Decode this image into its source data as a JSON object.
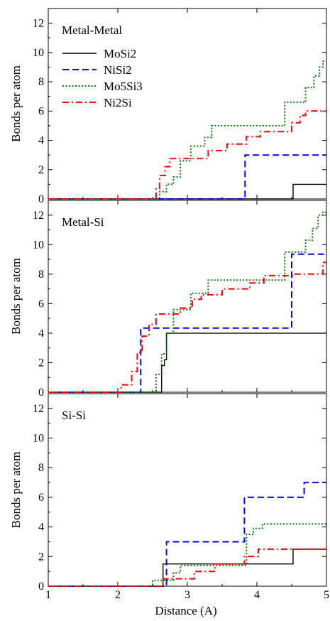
{
  "chart_data": [
    {
      "type": "line",
      "step": true,
      "panel_label": "Metal-Metal",
      "xlim": [
        1,
        5
      ],
      "ylim": [
        0,
        13
      ],
      "x_ticks": [
        1,
        2,
        3,
        4,
        5
      ],
      "y_ticks": [
        0,
        2,
        4,
        6,
        8,
        10,
        12
      ],
      "y_tick_labels": [
        "0",
        "2",
        "4",
        "6",
        "8",
        "10",
        "12"
      ],
      "ylabel": "Bonds per atom",
      "legend_position": "upper-left",
      "series": [
        {
          "name": "MoSi2",
          "color": "#000000",
          "style": "solid",
          "x": [
            1.0,
            4.52,
            4.52,
            5.0
          ],
          "y": [
            0,
            0,
            1,
            1
          ]
        },
        {
          "name": "NiSi2",
          "color": "#0000ff",
          "style": "dashed",
          "x": [
            1.0,
            3.83,
            3.83,
            5.0
          ],
          "y": [
            0,
            0,
            3,
            3
          ]
        },
        {
          "name": "Mo5Si3",
          "color": "#008000",
          "style": "dotted",
          "x": [
            1.0,
            2.6,
            2.6,
            2.7,
            2.7,
            2.8,
            2.8,
            2.9,
            2.9,
            3.05,
            3.05,
            3.25,
            3.25,
            3.35,
            3.35,
            4.4,
            4.4,
            4.7,
            4.7,
            4.82,
            4.82,
            4.9,
            4.9,
            4.95,
            4.95,
            5.0
          ],
          "y": [
            0,
            0,
            0.5,
            0.5,
            1.0,
            1.0,
            1.5,
            1.5,
            2.6,
            2.6,
            3.6,
            3.6,
            4.2,
            4.2,
            5.0,
            5.0,
            6.6,
            6.6,
            7.6,
            7.6,
            8.4,
            8.4,
            9.0,
            9.0,
            9.4,
            9.4
          ]
        },
        {
          "name": "Ni2Si",
          "color": "#ff0000",
          "style": "dashdot",
          "x": [
            1.0,
            2.55,
            2.55,
            2.6,
            2.6,
            2.68,
            2.68,
            2.75,
            2.75,
            3.3,
            3.3,
            3.57,
            3.57,
            3.85,
            3.85,
            4.05,
            4.05,
            4.5,
            4.5,
            4.62,
            4.62,
            4.7,
            4.7,
            5.0
          ],
          "y": [
            0,
            0,
            0.7,
            0.7,
            1.6,
            1.6,
            2.2,
            2.2,
            2.75,
            2.75,
            3.3,
            3.3,
            3.75,
            3.75,
            4.25,
            4.25,
            4.6,
            4.6,
            5.2,
            5.2,
            5.7,
            5.7,
            6.0,
            6.0
          ]
        }
      ]
    },
    {
      "type": "line",
      "step": true,
      "panel_label": "Metal-Si",
      "xlim": [
        1,
        5
      ],
      "ylim": [
        0,
        13
      ],
      "x_ticks": [
        1,
        2,
        3,
        4,
        5
      ],
      "y_ticks": [
        0,
        2,
        4,
        6,
        8,
        10,
        12
      ],
      "y_tick_labels": [
        "0",
        "2",
        "4",
        "6",
        "8",
        "10",
        "12"
      ],
      "ylabel": "Bonds per atom",
      "series": [
        {
          "name": "MoSi2",
          "color": "#000000",
          "style": "solid",
          "x": [
            1.0,
            2.63,
            2.63,
            2.67,
            2.67,
            2.7,
            2.7,
            5.0
          ],
          "y": [
            0,
            0,
            1.8,
            1.8,
            2.2,
            2.2,
            4.0,
            4.0
          ]
        },
        {
          "name": "NiSi2",
          "color": "#0000ff",
          "style": "dashed",
          "x": [
            1.0,
            2.33,
            2.33,
            4.5,
            4.5,
            5.0
          ],
          "y": [
            0,
            0,
            4.35,
            4.35,
            9.35,
            9.35
          ]
        },
        {
          "name": "Mo5Si3",
          "color": "#008000",
          "style": "dotted",
          "x": [
            1.0,
            2.55,
            2.55,
            2.63,
            2.63,
            2.7,
            2.7,
            2.8,
            2.8,
            3.05,
            3.05,
            3.3,
            3.3,
            4.4,
            4.4,
            4.7,
            4.7,
            4.8,
            4.8,
            4.88,
            4.88,
            4.95,
            4.95,
            5.0
          ],
          "y": [
            0,
            0,
            1.2,
            1.2,
            2.6,
            2.6,
            4.0,
            4.0,
            5.6,
            5.6,
            6.7,
            6.7,
            7.6,
            7.6,
            9.5,
            9.5,
            10.3,
            10.3,
            11.1,
            11.1,
            12.0,
            12.0,
            12.2,
            12.2
          ]
        },
        {
          "name": "Ni2Si",
          "color": "#ff0000",
          "style": "dashdot",
          "x": [
            1.0,
            2.05,
            2.05,
            2.2,
            2.2,
            2.28,
            2.28,
            2.35,
            2.35,
            2.45,
            2.45,
            2.55,
            2.55,
            2.9,
            2.9,
            3.07,
            3.07,
            3.2,
            3.2,
            3.5,
            3.5,
            3.9,
            3.9,
            4.1,
            4.1,
            4.55,
            4.55,
            4.95,
            4.95,
            5.0
          ],
          "y": [
            0,
            0,
            0.5,
            0.5,
            1.4,
            1.4,
            2.7,
            2.7,
            3.8,
            3.8,
            4.6,
            4.6,
            5.3,
            5.3,
            5.7,
            5.7,
            6.3,
            6.3,
            6.6,
            6.6,
            7.0,
            7.0,
            7.4,
            7.4,
            7.9,
            7.9,
            8.0,
            8.0,
            8.8,
            8.8
          ]
        }
      ]
    },
    {
      "type": "line",
      "step": true,
      "panel_label": "Si-Si",
      "xlim": [
        1,
        5
      ],
      "ylim": [
        0,
        13
      ],
      "x_ticks": [
        1,
        2,
        3,
        4,
        5
      ],
      "x_tick_labels": [
        "1",
        "2",
        "3",
        "4",
        "5"
      ],
      "y_ticks": [
        0,
        2,
        4,
        6,
        8,
        10,
        12
      ],
      "y_tick_labels": [
        "0",
        "2",
        "4",
        "6",
        "8",
        "10",
        "12"
      ],
      "xlabel": "Distance (A)",
      "ylabel": "Bonds per atom",
      "series": [
        {
          "name": "MoSi2",
          "color": "#000000",
          "style": "solid",
          "x": [
            1.0,
            2.65,
            2.65,
            4.52,
            4.52,
            5.0
          ],
          "y": [
            0,
            0,
            1.5,
            1.5,
            2.5,
            2.5
          ]
        },
        {
          "name": "NiSi2",
          "color": "#0000ff",
          "style": "dashed",
          "x": [
            1.0,
            2.7,
            2.7,
            3.82,
            3.82,
            4.68,
            4.68,
            5.0
          ],
          "y": [
            0,
            0,
            3.0,
            3.0,
            6.0,
            6.0,
            7.0,
            7.0
          ]
        },
        {
          "name": "Mo5Si3",
          "color": "#008000",
          "style": "dotted",
          "x": [
            1.0,
            2.5,
            2.5,
            2.8,
            2.8,
            2.9,
            2.9,
            3.85,
            3.85,
            3.95,
            3.95,
            4.08,
            4.08,
            5.0
          ],
          "y": [
            0,
            0,
            0.4,
            0.4,
            0.9,
            0.9,
            1.4,
            1.4,
            3.5,
            3.5,
            3.9,
            3.9,
            4.2,
            4.2
          ]
        },
        {
          "name": "Ni2Si",
          "color": "#ff0000",
          "style": "dashdot",
          "x": [
            1.0,
            2.65,
            2.65,
            3.1,
            3.1,
            3.4,
            3.4,
            3.82,
            3.82,
            4.02,
            4.02,
            5.0
          ],
          "y": [
            0,
            0,
            0.5,
            0.5,
            1.0,
            1.0,
            1.5,
            1.5,
            2.0,
            2.0,
            2.5,
            2.5
          ]
        }
      ]
    }
  ]
}
